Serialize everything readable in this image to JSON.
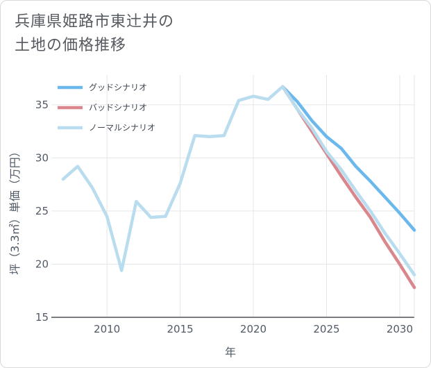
{
  "chart_data": {
    "type": "line",
    "title": "兵庫県姫路市東辻井の土地の価格推移",
    "title_lines": [
      "兵庫県姫路市東辻井の",
      "土地の価格推移"
    ],
    "xlabel": "年",
    "ylabel": "坪（3.3㎡）単価（万円）",
    "xlim": [
      2006.2,
      2031
    ],
    "ylim": [
      15,
      37.8
    ],
    "xticks": [
      2010,
      2015,
      2020,
      2025,
      2030
    ],
    "yticks": [
      15,
      20,
      25,
      30,
      35
    ],
    "legend_position": "top-left",
    "grid": true,
    "series": [
      {
        "name": "グッドシナリオ",
        "color": "#6bb8ec",
        "x": [
          2022,
          2023,
          2024,
          2025,
          2026,
          2027,
          2028,
          2029,
          2030,
          2031
        ],
        "y": [
          36.7,
          35.3,
          33.5,
          32.0,
          30.9,
          29.2,
          27.8,
          26.3,
          24.8,
          23.2
        ]
      },
      {
        "name": "バッドシナリオ",
        "color": "#d9868c",
        "x": [
          2022,
          2023,
          2024,
          2025,
          2026,
          2027,
          2028,
          2029,
          2030,
          2031
        ],
        "y": [
          36.7,
          34.6,
          32.5,
          30.4,
          28.3,
          26.3,
          24.4,
          22.1,
          20.0,
          17.8
        ]
      },
      {
        "name": "ノーマルシナリオ",
        "color": "#b9dcee",
        "x": [
          2007,
          2008,
          2009,
          2010,
          2011,
          2012,
          2013,
          2014,
          2015,
          2016,
          2017,
          2018,
          2019,
          2020,
          2021,
          2022,
          2023,
          2024,
          2025,
          2026,
          2027,
          2028,
          2029,
          2030,
          2031
        ],
        "y": [
          28.0,
          29.2,
          27.2,
          24.5,
          19.4,
          25.9,
          24.4,
          24.5,
          27.6,
          32.1,
          32.0,
          32.1,
          35.4,
          35.8,
          35.5,
          36.7,
          34.6,
          32.8,
          30.6,
          28.9,
          26.9,
          25.0,
          22.9,
          21.0,
          19.0
        ]
      }
    ]
  }
}
